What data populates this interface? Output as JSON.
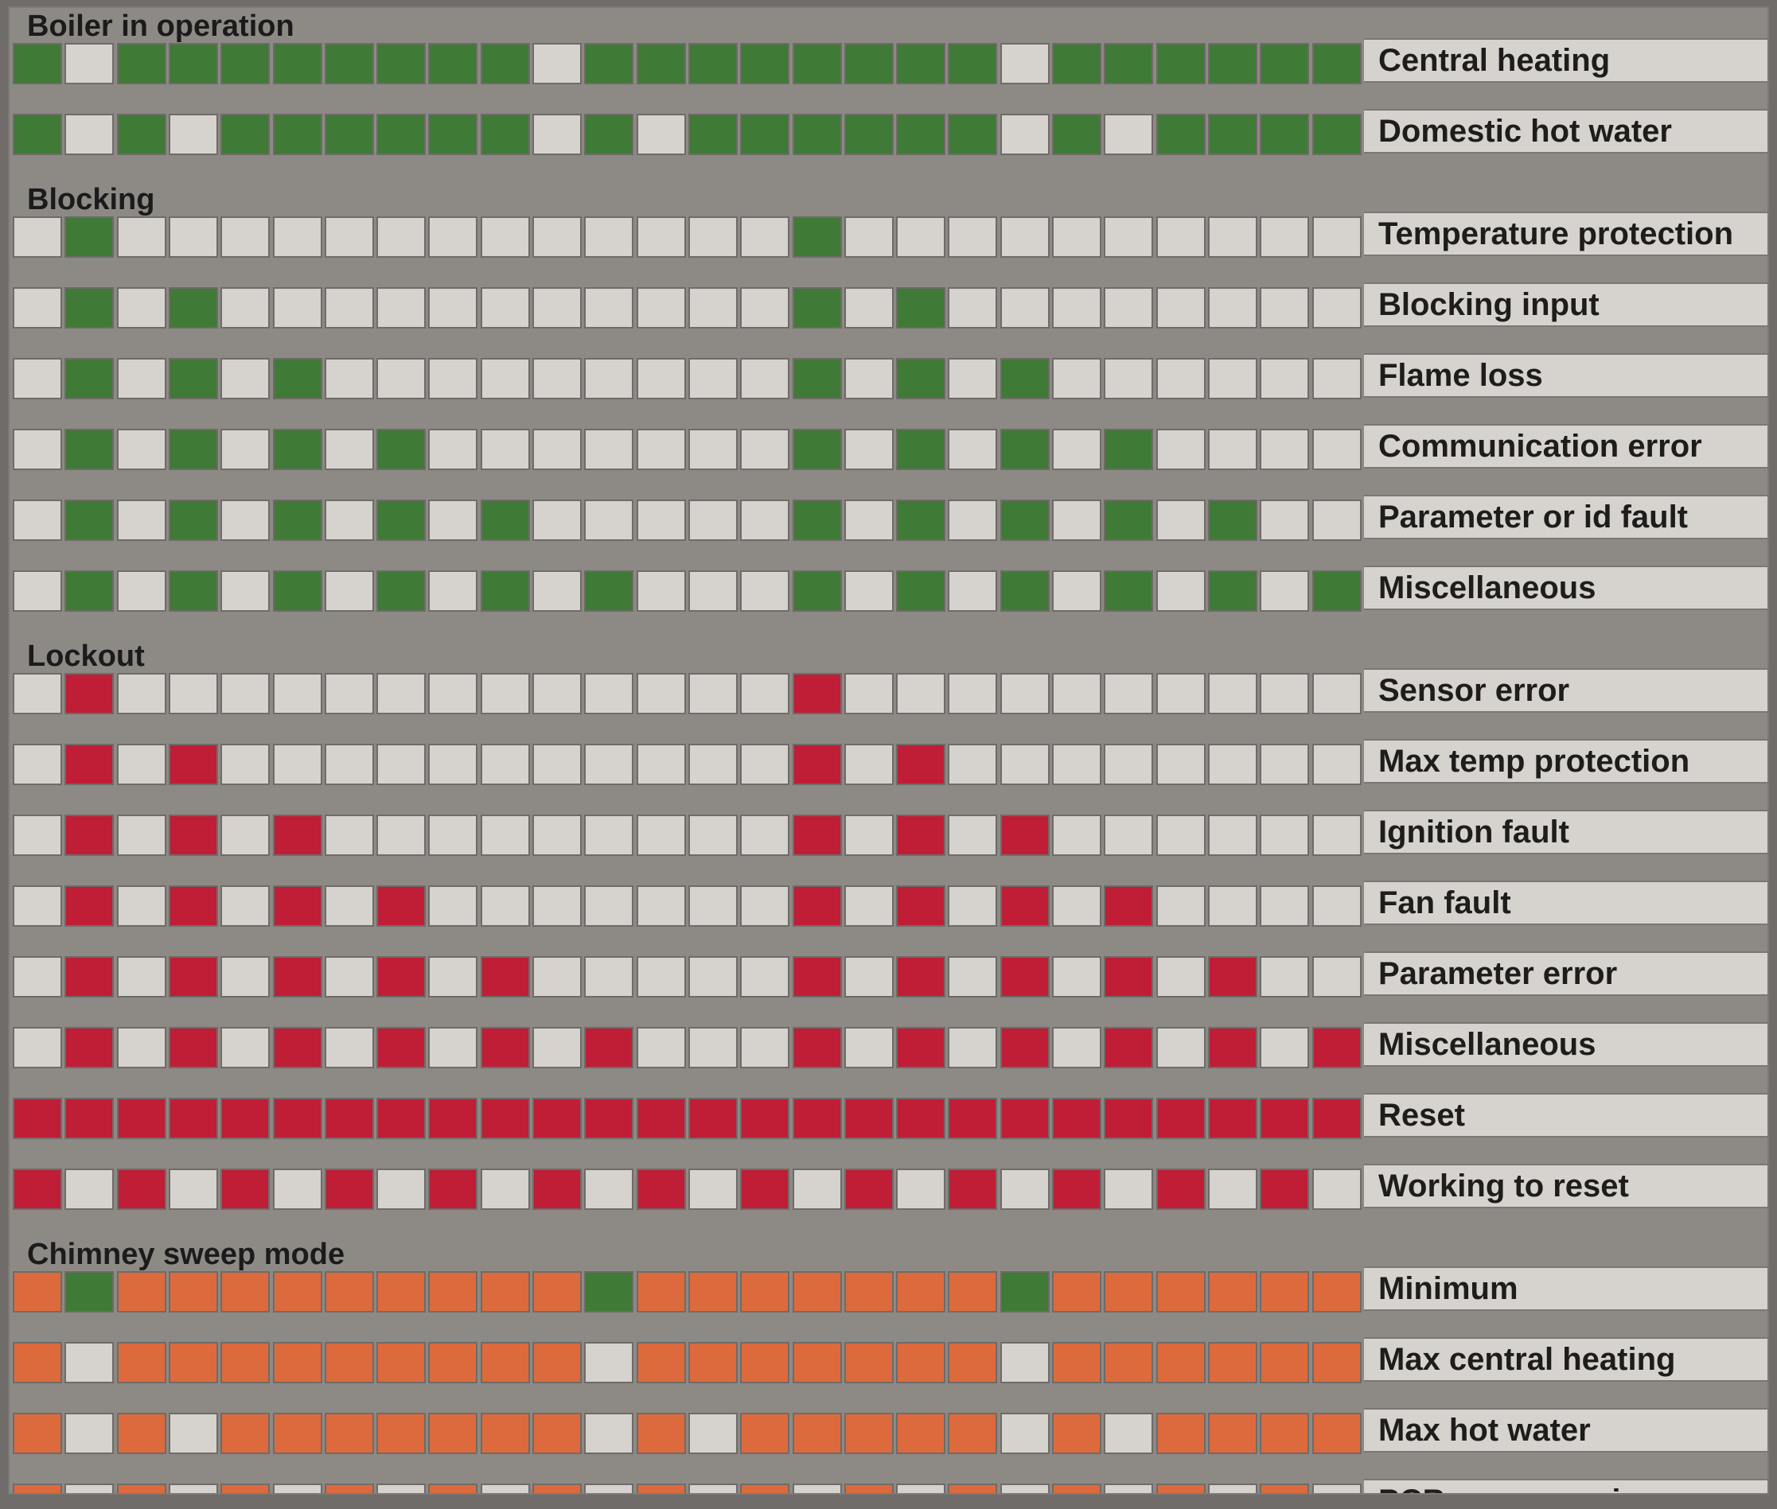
{
  "colors": {
    "off": "#d6d3ce",
    "green": "#3f7a36",
    "red": "#c01d36",
    "orange": "#dd6a3c"
  },
  "sections": [
    {
      "title": "Boiler in operation",
      "rows": [
        {
          "label": "Central heating",
          "on_color": "green",
          "pattern": "GWGGGGGGGGWGGGGGGGGWGGGGGG"
        },
        {
          "label": "Domestic hot water",
          "on_color": "green",
          "pattern": "GWGWGGGGGGWGWGGGGGGWGWGGGG"
        }
      ]
    },
    {
      "title": "Blocking",
      "rows": [
        {
          "label": "Temperature protection",
          "on_color": "green",
          "pattern": "WGWWWWWWWWWWWWWGWWWWWWWWWW"
        },
        {
          "label": "Blocking input",
          "on_color": "green",
          "pattern": "WGWGWWWWWWWWWWWGWGWWWWWWWW"
        },
        {
          "label": "Flame loss",
          "on_color": "green",
          "pattern": "WGWGWGWWWWWWWWWGWGWGWWWWWW"
        },
        {
          "label": "Communication error",
          "on_color": "green",
          "pattern": "WGWGWGWGWWWWWWWGWGWGWGWWWW"
        },
        {
          "label": "Parameter or id fault",
          "on_color": "green",
          "pattern": "WGWGWGWGWGWWWWWGWGWGWGWGWW"
        },
        {
          "label": "Miscellaneous",
          "on_color": "green",
          "pattern": "WGWGWGWGWGWGWWWGWGWGWGWGWG"
        }
      ]
    },
    {
      "title": "Lockout",
      "rows": [
        {
          "label": "Sensor error",
          "on_color": "red",
          "pattern": "WRWWWWWWWWWWWWWRWWWWWWWWWW"
        },
        {
          "label": "Max temp protection",
          "on_color": "red",
          "pattern": "WRWRWWWWWWWWWWWRWRWWWWWWWW"
        },
        {
          "label": "Ignition fault",
          "on_color": "red",
          "pattern": "WRWRWRWWWWWWWWWRWRWRWWWWWW"
        },
        {
          "label": "Fan fault",
          "on_color": "red",
          "pattern": "WRWRWRWRWWWWWWWRWRWRWRWWWW"
        },
        {
          "label": "Parameter error",
          "on_color": "red",
          "pattern": "WRWRWRWRWRWWWWWRWRWRWRWRWW"
        },
        {
          "label": "Miscellaneous",
          "on_color": "red",
          "pattern": "WRWRWRWRWRWRWWWRWRWRWRWRWR"
        },
        {
          "label": "Reset",
          "on_color": "red",
          "pattern": "RRRRRRRRRRRRRRRRRRRRRRRRRR"
        },
        {
          "label": "Working to reset",
          "on_color": "red",
          "pattern": "RWRWRWRWRWRWRWRWRWRWRWRWRW"
        }
      ]
    },
    {
      "title": "Chimney sweep mode",
      "rows": [
        {
          "label": "Minimum",
          "on_color": "orange",
          "pattern": "OGOOOOOOOOOGOOOOOOOGOOOOOO"
        },
        {
          "label": "Max central heating",
          "on_color": "orange",
          "pattern": "OWOOOOOOOOOWOOOOOOOWOOOOOO"
        },
        {
          "label": "Max hot water",
          "on_color": "orange",
          "pattern": "OWOWOOOOOOOWOWOOOOOWOWOOOO"
        },
        {
          "label": "PCB programming",
          "on_color": "orange",
          "pattern": "OWOWOWOWOWOWOWOWOWOWOWOWOW"
        }
      ]
    }
  ]
}
